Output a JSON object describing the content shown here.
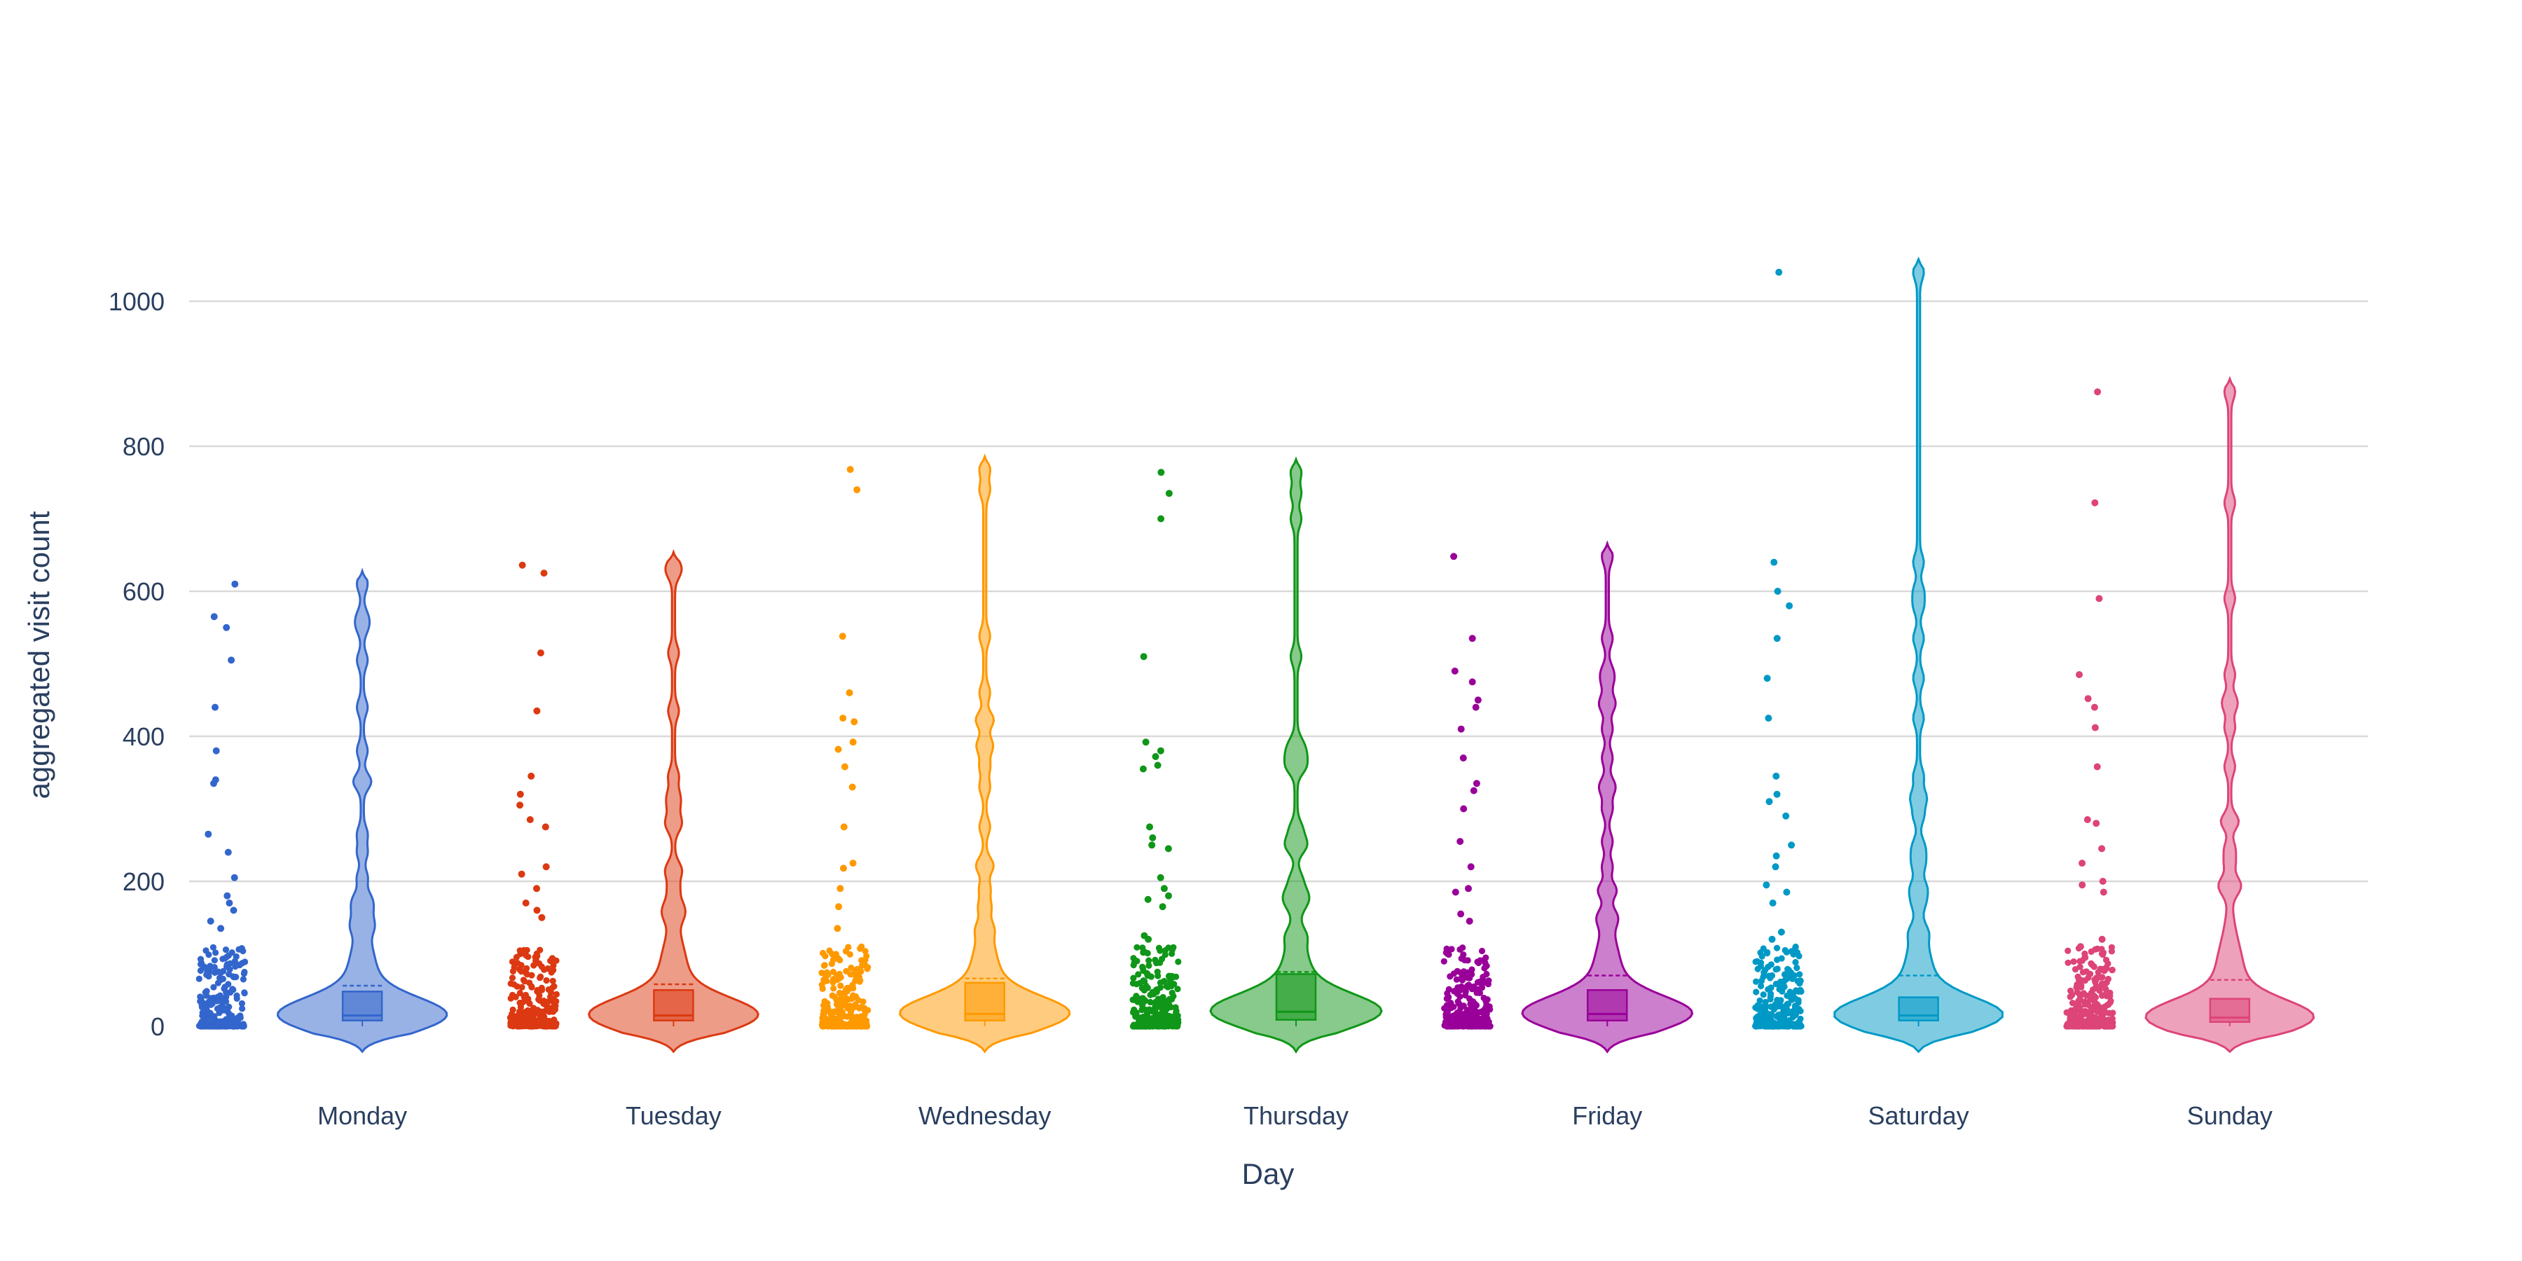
{
  "chart_data": {
    "type": "violin",
    "xlabel": "Day",
    "ylabel": "aggregated visit count",
    "y_ticks": [
      0,
      200,
      400,
      600,
      800,
      1000
    ],
    "ylim": [
      -40,
      1070
    ],
    "grid": true,
    "legend": "none",
    "categories": [
      "Monday",
      "Tuesday",
      "Wednesday",
      "Thursday",
      "Friday",
      "Saturday",
      "Sunday"
    ],
    "series": [
      {
        "category": "Monday",
        "color": "#3366cc",
        "median": 15,
        "q1": 8,
        "q3": 48,
        "mean": 56,
        "max": 610,
        "outliers": [
          610,
          565,
          550,
          505,
          440,
          380,
          340,
          335,
          265,
          240,
          205,
          180,
          170,
          160,
          145,
          135
        ]
      },
      {
        "category": "Tuesday",
        "color": "#dc3912",
        "median": 15,
        "q1": 8,
        "q3": 50,
        "mean": 58,
        "max": 636,
        "outliers": [
          636,
          625,
          515,
          435,
          345,
          320,
          305,
          285,
          275,
          220,
          210,
          190,
          170,
          160,
          150
        ]
      },
      {
        "category": "Wednesday",
        "color": "#ff9900",
        "median": 17,
        "q1": 8,
        "q3": 60,
        "mean": 66,
        "max": 768,
        "outliers": [
          768,
          740,
          538,
          460,
          425,
          420,
          392,
          382,
          358,
          330,
          275,
          225,
          218,
          190,
          165,
          135
        ]
      },
      {
        "category": "Thursday",
        "color": "#109618",
        "median": 20,
        "q1": 9,
        "q3": 72,
        "mean": 75,
        "max": 764,
        "outliers": [
          764,
          735,
          700,
          510,
          392,
          380,
          372,
          360,
          355,
          275,
          260,
          250,
          245,
          205,
          190,
          180,
          175,
          165,
          125,
          120
        ]
      },
      {
        "category": "Friday",
        "color": "#990099",
        "median": 17,
        "q1": 8,
        "q3": 50,
        "mean": 70,
        "max": 648,
        "outliers": [
          648,
          535,
          490,
          475,
          450,
          440,
          410,
          370,
          335,
          325,
          300,
          255,
          220,
          190,
          185,
          155,
          145
        ]
      },
      {
        "category": "Saturday",
        "color": "#0099c6",
        "median": 15,
        "q1": 8,
        "q3": 40,
        "mean": 70,
        "max": 1040,
        "outliers": [
          1040,
          640,
          600,
          580,
          535,
          480,
          425,
          345,
          320,
          310,
          290,
          250,
          235,
          220,
          195,
          185,
          170,
          130,
          120
        ]
      },
      {
        "category": "Sunday",
        "color": "#dd4477",
        "median": 12,
        "q1": 6,
        "q3": 38,
        "mean": 64,
        "max": 875,
        "outliers": [
          875,
          722,
          590,
          485,
          452,
          440,
          412,
          358,
          285,
          280,
          245,
          225,
          200,
          195,
          185,
          120,
          110,
          95
        ]
      }
    ]
  }
}
